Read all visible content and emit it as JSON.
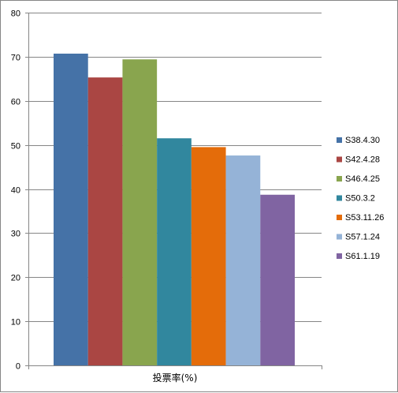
{
  "chart_data": {
    "type": "bar",
    "categories": [
      "投票率(%)"
    ],
    "series": [
      {
        "name": "S38.4.30",
        "values": [
          70.7
        ],
        "color": "#4572A7"
      },
      {
        "name": "S42.4.28",
        "values": [
          65.3
        ],
        "color": "#AA4643"
      },
      {
        "name": "S46.4.25",
        "values": [
          69.4
        ],
        "color": "#89A54E"
      },
      {
        "name": "S50.3.2",
        "values": [
          51.5
        ],
        "color": "#31879E"
      },
      {
        "name": "S53.11.26",
        "values": [
          49.5
        ],
        "color": "#E46C0A"
      },
      {
        "name": "S57.1.24",
        "values": [
          47.6
        ],
        "color": "#95B3D7"
      },
      {
        "name": "S61.1.19",
        "values": [
          38.7
        ],
        "color": "#8064A2"
      }
    ],
    "yticks": [
      "0",
      "10",
      "20",
      "30",
      "40",
      "50",
      "60",
      "70",
      "80"
    ],
    "ylim": [
      0,
      80
    ],
    "grid": true,
    "legend_position": "right"
  }
}
